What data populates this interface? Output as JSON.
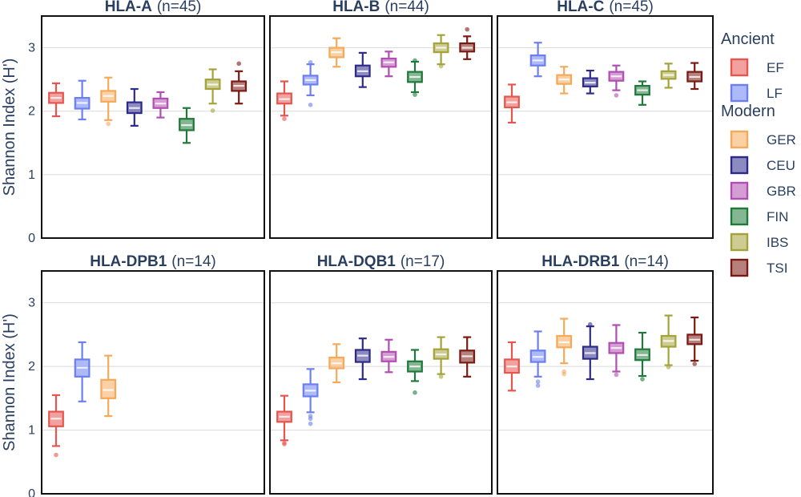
{
  "chart_data": {
    "type": "box",
    "ylabel": "Shannon Index (H')",
    "ylim": [
      0,
      3.5
    ],
    "yticks": [
      "0",
      "1",
      "2",
      "3"
    ],
    "grid": true,
    "legend_placement": "right",
    "legend": {
      "groups": [
        {
          "label": "Ancient",
          "items": [
            "EF",
            "LF"
          ]
        },
        {
          "label": "Modern",
          "items": [
            "GER",
            "CEU",
            "GBR",
            "FIN",
            "IBS",
            "TSI"
          ]
        }
      ]
    },
    "series_colors": {
      "EF": "#e8554e",
      "LF": "#6b7ff0",
      "GER": "#f5a95b",
      "CEU": "#2e2a8a",
      "GBR": "#b04fb0",
      "FIN": "#1f7a3a",
      "IBS": "#a3a33a",
      "TSI": "#7a1a12"
    },
    "panels": [
      {
        "gene": "HLA-A",
        "count": "(n=45)",
        "boxes": [
          {
            "group": "EF",
            "min": 1.92,
            "q1": 2.13,
            "median": 2.21,
            "q3": 2.29,
            "max": 2.44,
            "outliers": []
          },
          {
            "group": "LF",
            "min": 1.87,
            "q1": 2.04,
            "median": 2.13,
            "q3": 2.21,
            "max": 2.48,
            "outliers": []
          },
          {
            "group": "GER",
            "min": 1.86,
            "q1": 2.15,
            "median": 2.24,
            "q3": 2.32,
            "max": 2.53,
            "outliers": [
              1.8
            ]
          },
          {
            "group": "CEU",
            "min": 1.77,
            "q1": 1.97,
            "median": 2.05,
            "q3": 2.14,
            "max": 2.35,
            "outliers": []
          },
          {
            "group": "GBR",
            "min": 1.9,
            "q1": 2.05,
            "median": 2.12,
            "q3": 2.2,
            "max": 2.3,
            "outliers": []
          },
          {
            "group": "FIN",
            "min": 1.5,
            "q1": 1.7,
            "median": 1.78,
            "q3": 1.88,
            "max": 2.05,
            "outliers": []
          },
          {
            "group": "IBS",
            "min": 2.12,
            "q1": 2.35,
            "median": 2.42,
            "q3": 2.5,
            "max": 2.66,
            "outliers": [
              2.01
            ]
          },
          {
            "group": "TSI",
            "min": 2.12,
            "q1": 2.32,
            "median": 2.4,
            "q3": 2.47,
            "max": 2.63,
            "outliers": [
              2.75
            ]
          }
        ]
      },
      {
        "gene": "HLA-B",
        "count": "(n=44)",
        "boxes": [
          {
            "group": "EF",
            "min": 1.93,
            "q1": 2.12,
            "median": 2.19,
            "q3": 2.28,
            "max": 2.47,
            "outliers": [
              1.88
            ]
          },
          {
            "group": "LF",
            "min": 2.25,
            "q1": 2.42,
            "median": 2.49,
            "q3": 2.56,
            "max": 2.74,
            "outliers": [
              2.1,
              2.77
            ]
          },
          {
            "group": "GER",
            "min": 2.7,
            "q1": 2.85,
            "median": 2.93,
            "q3": 3.0,
            "max": 3.15,
            "outliers": []
          },
          {
            "group": "CEU",
            "min": 2.38,
            "q1": 2.55,
            "median": 2.63,
            "q3": 2.72,
            "max": 2.92,
            "outliers": []
          },
          {
            "group": "GBR",
            "min": 2.55,
            "q1": 2.7,
            "median": 2.77,
            "q3": 2.83,
            "max": 2.94,
            "outliers": []
          },
          {
            "group": "FIN",
            "min": 2.3,
            "q1": 2.46,
            "median": 2.54,
            "q3": 2.62,
            "max": 2.78,
            "outliers": [
              2.26,
              2.8
            ]
          },
          {
            "group": "IBS",
            "min": 2.74,
            "q1": 2.93,
            "median": 3.0,
            "q3": 3.07,
            "max": 3.2,
            "outliers": [
              2.71
            ]
          },
          {
            "group": "TSI",
            "min": 2.82,
            "q1": 2.94,
            "median": 3.0,
            "q3": 3.07,
            "max": 3.18,
            "outliers": [
              3.29
            ]
          }
        ]
      },
      {
        "gene": "HLA-C",
        "count": "(n=45)",
        "boxes": [
          {
            "group": "EF",
            "min": 1.82,
            "q1": 2.06,
            "median": 2.14,
            "q3": 2.23,
            "max": 2.42,
            "outliers": []
          },
          {
            "group": "LF",
            "min": 2.55,
            "q1": 2.72,
            "median": 2.8,
            "q3": 2.88,
            "max": 3.08,
            "outliers": []
          },
          {
            "group": "GER",
            "min": 2.28,
            "q1": 2.43,
            "median": 2.5,
            "q3": 2.57,
            "max": 2.7,
            "outliers": []
          },
          {
            "group": "CEU",
            "min": 2.28,
            "q1": 2.39,
            "median": 2.45,
            "q3": 2.52,
            "max": 2.64,
            "outliers": []
          },
          {
            "group": "GBR",
            "min": 2.33,
            "q1": 2.48,
            "median": 2.55,
            "q3": 2.62,
            "max": 2.72,
            "outliers": [
              2.25
            ]
          },
          {
            "group": "FIN",
            "min": 2.1,
            "q1": 2.26,
            "median": 2.33,
            "q3": 2.4,
            "max": 2.47,
            "outliers": []
          },
          {
            "group": "IBS",
            "min": 2.37,
            "q1": 2.51,
            "median": 2.57,
            "q3": 2.63,
            "max": 2.75,
            "outliers": []
          },
          {
            "group": "TSI",
            "min": 2.35,
            "q1": 2.47,
            "median": 2.54,
            "q3": 2.62,
            "max": 2.76,
            "outliers": []
          }
        ]
      },
      {
        "gene": "HLA-DPB1",
        "count": "(n=14)",
        "boxes": [
          {
            "group": "EF",
            "min": 0.75,
            "q1": 1.06,
            "median": 1.18,
            "q3": 1.29,
            "max": 1.55,
            "outliers": [
              0.61
            ]
          },
          {
            "group": "LF",
            "min": 1.45,
            "q1": 1.84,
            "median": 1.98,
            "q3": 2.11,
            "max": 2.38,
            "outliers": []
          },
          {
            "group": "GER",
            "min": 1.22,
            "q1": 1.5,
            "median": 1.63,
            "q3": 1.79,
            "max": 2.17,
            "outliers": []
          }
        ]
      },
      {
        "gene": "HLA-DQB1",
        "count": "(n=17)",
        "boxes": [
          {
            "group": "EF",
            "min": 0.84,
            "q1": 1.13,
            "median": 1.21,
            "q3": 1.29,
            "max": 1.54,
            "outliers": [
              0.8,
              0.78
            ]
          },
          {
            "group": "LF",
            "min": 1.28,
            "q1": 1.53,
            "median": 1.62,
            "q3": 1.72,
            "max": 1.96,
            "outliers": [
              1.18,
              1.1,
              1.22
            ]
          },
          {
            "group": "GER",
            "min": 1.75,
            "q1": 1.97,
            "median": 2.05,
            "q3": 2.14,
            "max": 2.35,
            "outliers": []
          },
          {
            "group": "CEU",
            "min": 1.8,
            "q1": 2.07,
            "median": 2.17,
            "q3": 2.26,
            "max": 2.44,
            "outliers": []
          },
          {
            "group": "GBR",
            "min": 1.91,
            "q1": 2.08,
            "median": 2.15,
            "q3": 2.23,
            "max": 2.42,
            "outliers": []
          },
          {
            "group": "FIN",
            "min": 1.77,
            "q1": 1.92,
            "median": 2.0,
            "q3": 2.08,
            "max": 2.26,
            "outliers": [
              1.59
            ]
          },
          {
            "group": "IBS",
            "min": 1.88,
            "q1": 2.12,
            "median": 2.19,
            "q3": 2.27,
            "max": 2.46,
            "outliers": [
              1.84
            ]
          },
          {
            "group": "TSI",
            "min": 1.84,
            "q1": 2.06,
            "median": 2.16,
            "q3": 2.25,
            "max": 2.46,
            "outliers": []
          }
        ]
      },
      {
        "gene": "HLA-DRB1",
        "count": "(n=14)",
        "boxes": [
          {
            "group": "EF",
            "min": 1.62,
            "q1": 1.9,
            "median": 2.0,
            "q3": 2.11,
            "max": 2.38,
            "outliers": []
          },
          {
            "group": "LF",
            "min": 1.84,
            "q1": 2.07,
            "median": 2.15,
            "q3": 2.25,
            "max": 2.55,
            "outliers": [
              1.76,
              1.7
            ]
          },
          {
            "group": "GER",
            "min": 2.05,
            "q1": 2.3,
            "median": 2.38,
            "q3": 2.48,
            "max": 2.75,
            "outliers": [
              1.92,
              1.88
            ]
          },
          {
            "group": "CEU",
            "min": 1.8,
            "q1": 2.12,
            "median": 2.21,
            "q3": 2.31,
            "max": 2.63,
            "outliers": [
              2.66
            ]
          },
          {
            "group": "GBR",
            "min": 1.92,
            "q1": 2.21,
            "median": 2.29,
            "q3": 2.37,
            "max": 2.65,
            "outliers": [
              1.87
            ]
          },
          {
            "group": "FIN",
            "min": 1.85,
            "q1": 2.1,
            "median": 2.18,
            "q3": 2.27,
            "max": 2.53,
            "outliers": [
              1.8
            ]
          },
          {
            "group": "IBS",
            "min": 2.02,
            "q1": 2.31,
            "median": 2.4,
            "q3": 2.48,
            "max": 2.8,
            "outliers": [
              1.99
            ]
          },
          {
            "group": "TSI",
            "min": 2.09,
            "q1": 2.35,
            "median": 2.42,
            "q3": 2.5,
            "max": 2.77,
            "outliers": [
              2.04
            ]
          }
        ]
      }
    ]
  }
}
